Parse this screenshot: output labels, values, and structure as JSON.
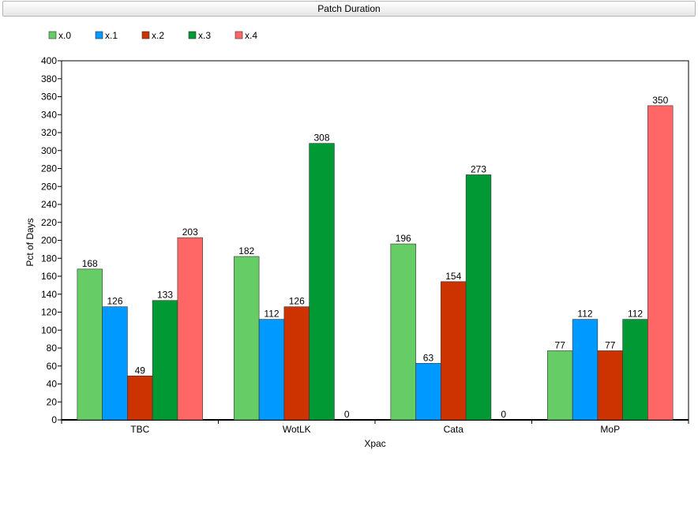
{
  "chart_data": {
    "type": "bar",
    "title": "Patch Duration",
    "xlabel": "Xpac",
    "ylabel": "Pct of Days",
    "categories": [
      "TBC",
      "WotLK",
      "Cata",
      "MoP"
    ],
    "series": [
      {
        "name": "x.0",
        "color": "#66cc66",
        "values": [
          168,
          182,
          196,
          77
        ]
      },
      {
        "name": "x.1",
        "color": "#0099ff",
        "values": [
          126,
          112,
          63,
          112
        ]
      },
      {
        "name": "x.2",
        "color": "#cc3300",
        "values": [
          49,
          126,
          154,
          77
        ]
      },
      {
        "name": "x.3",
        "color": "#009933",
        "values": [
          133,
          308,
          273,
          112
        ]
      },
      {
        "name": "x.4",
        "color": "#ff6666",
        "values": [
          203,
          0,
          0,
          350
        ]
      }
    ],
    "ylim": [
      0,
      400
    ],
    "ytick_step": 20,
    "legend_position": "top-left",
    "grid": false
  }
}
